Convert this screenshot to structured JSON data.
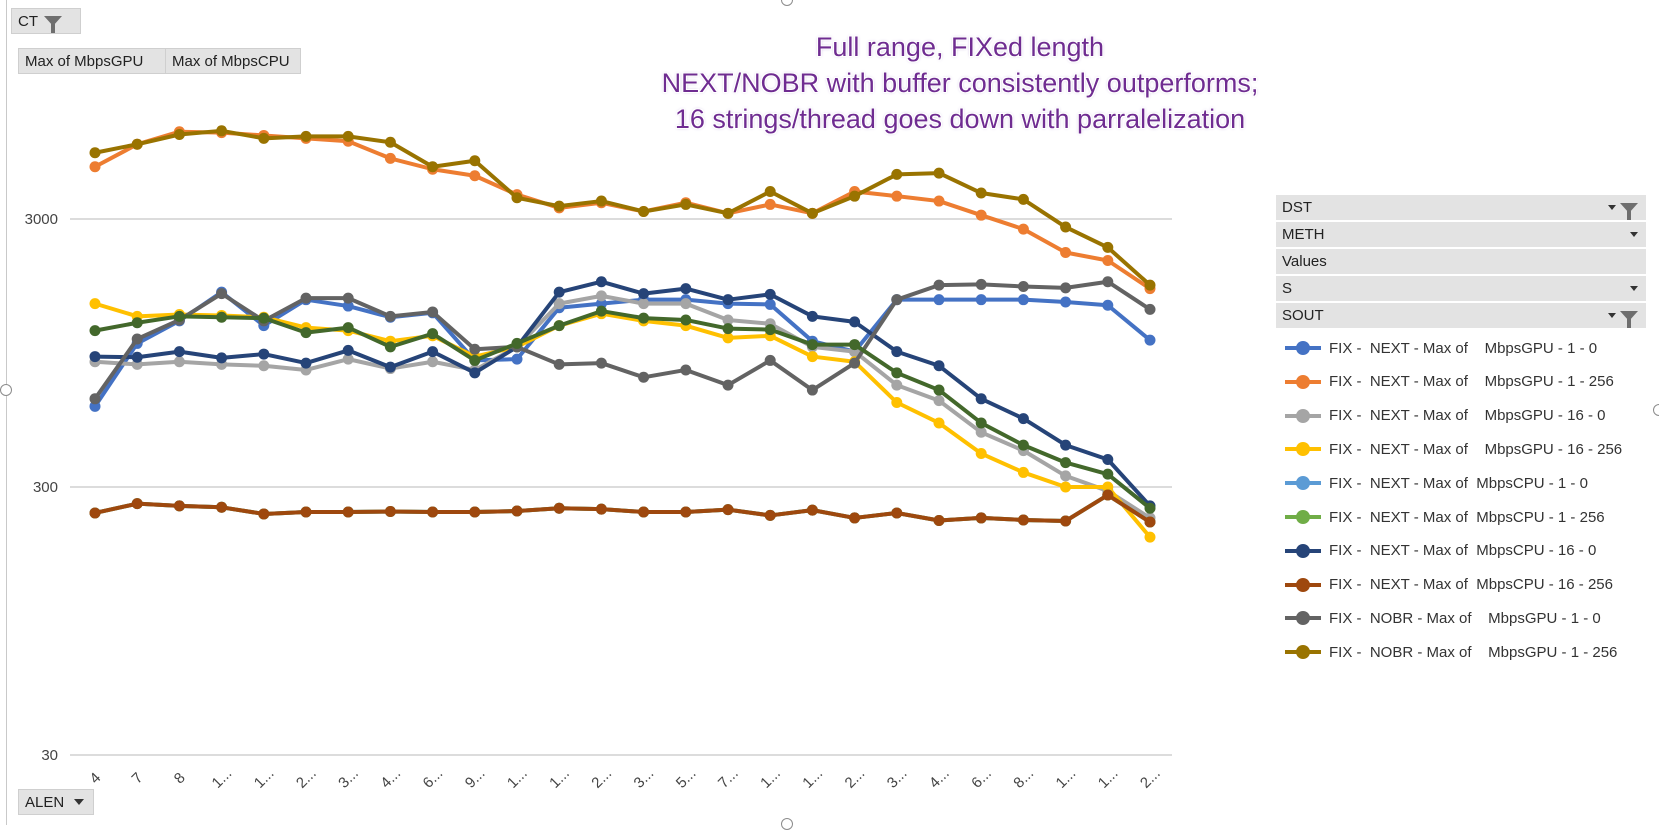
{
  "pivot": {
    "ct_button": "CT",
    "value_buttons": [
      "Max of    MbpsGPU",
      "Max of  MbpsCPU"
    ],
    "alen_button": "ALEN"
  },
  "field_list": {
    "rows": [
      {
        "label": "DST",
        "icon": "filter-icon"
      },
      {
        "label": "METH",
        "icon": "dropdown-icon"
      },
      {
        "label": "Values",
        "icon": ""
      },
      {
        "label": "S",
        "icon": "dropdown-icon"
      },
      {
        "label": "SOUT",
        "icon": "filter-icon"
      }
    ]
  },
  "chart_data": {
    "type": "line",
    "title_lines": [
      "Full range, FIXed length",
      "NEXT/NOBR with buffer consistently outperforms;",
      "16 strings/thread goes down with parralelization"
    ],
    "y_scale": "log",
    "ylim": [
      30,
      5000
    ],
    "y_ticks": [
      30,
      300,
      3000
    ],
    "y_tick_labels": [
      "30",
      "300",
      "3000"
    ],
    "grid": true,
    "legend_position": "right",
    "categories": [
      "4",
      "7",
      "8",
      "1...",
      "1...",
      "2...",
      "3...",
      "4...",
      "6...",
      "9...",
      "1...",
      "1...",
      "2...",
      "3...",
      "5...",
      "7...",
      "1...",
      "1...",
      "2...",
      "3...",
      "4...",
      "6...",
      "8...",
      "1...",
      "1...",
      "2..."
    ],
    "series": [
      {
        "name": "FIX -  NEXT - Max of    MbpsGPU - 1 - 0",
        "color": "#4472C4",
        "values": [
          600,
          1030,
          1250,
          1600,
          1200,
          1500,
          1420,
          1290,
          1340,
          890,
          900,
          1400,
          1450,
          1500,
          1500,
          1450,
          1440,
          1050,
          960,
          1500,
          1500,
          1500,
          1500,
          1470,
          1430,
          1060
        ]
      },
      {
        "name": "FIX -  NEXT - Max of    MbpsGPU - 1 - 256",
        "color": "#ED7D31",
        "values": [
          4700,
          5700,
          6350,
          6300,
          6150,
          6000,
          5850,
          5050,
          4600,
          4350,
          3700,
          3300,
          3450,
          3200,
          3450,
          3150,
          3400,
          3150,
          3800,
          3650,
          3500,
          3100,
          2750,
          2250,
          2100,
          1650
        ]
      },
      {
        "name": "FIX -  NEXT - Max of    MbpsGPU - 16 - 0",
        "color": "#A5A5A5",
        "values": [
          880,
          860,
          880,
          860,
          850,
          820,
          900,
          830,
          880,
          820,
          1000,
          1450,
          1550,
          1450,
          1450,
          1260,
          1220,
          1000,
          960,
          720,
          630,
          480,
          410,
          330,
          290,
          230
        ]
      },
      {
        "name": "FIX -  NEXT - Max of    MbpsGPU - 16 - 256",
        "color": "#FFC000",
        "values": [
          1450,
          1300,
          1320,
          1310,
          1290,
          1180,
          1150,
          1050,
          1100,
          920,
          1000,
          1200,
          1330,
          1250,
          1200,
          1080,
          1100,
          920,
          880,
          620,
          520,
          400,
          340,
          300,
          300,
          195
        ]
      },
      {
        "name": "FIX -  NEXT - Max of  MbpsCPU - 1 - 0",
        "color": "#5B9BD5",
        "values": [
          240,
          260,
          255,
          252,
          238,
          242,
          242,
          243,
          242,
          242,
          244,
          250,
          248,
          242,
          242,
          247,
          235,
          246,
          230,
          240,
          225,
          230,
          226,
          224,
          280,
          222
        ]
      },
      {
        "name": "FIX -  NEXT - Max of  MbpsCPU - 1 - 256",
        "color": "#70AD47",
        "values": [
          240,
          260,
          255,
          252,
          238,
          242,
          242,
          243,
          242,
          242,
          244,
          250,
          248,
          242,
          242,
          247,
          235,
          246,
          230,
          240,
          225,
          230,
          226,
          224,
          280,
          222
        ]
      },
      {
        "name": "FIX -  NEXT - Max of  MbpsCPU - 16 - 0",
        "color": "#264478",
        "values": [
          920,
          915,
          960,
          910,
          940,
          870,
          970,
          840,
          960,
          800,
          1000,
          1600,
          1750,
          1580,
          1650,
          1500,
          1570,
          1300,
          1240,
          960,
          850,
          640,
          540,
          430,
          380,
          255
        ]
      },
      {
        "name": "FIX -  NEXT - Max of  MbpsCPU - 16 - 256",
        "color": "#9E480E",
        "values": [
          240,
          260,
          255,
          252,
          238,
          242,
          242,
          243,
          242,
          242,
          244,
          250,
          248,
          242,
          242,
          247,
          235,
          246,
          230,
          240,
          225,
          230,
          226,
          224,
          280,
          222
        ]
      },
      {
        "name": "FIX -  NOBR - Max of    MbpsGPU - 1 - 0",
        "color": "#636363",
        "values": [
          640,
          1070,
          1260,
          1580,
          1250,
          1520,
          1520,
          1300,
          1350,
          980,
          1000,
          860,
          870,
          770,
          820,
          720,
          890,
          690,
          870,
          1500,
          1700,
          1710,
          1680,
          1660,
          1750,
          1380
        ]
      },
      {
        "name": "FIX -  NOBR - Max of    MbpsGPU - 1 - 256",
        "color": "#997300",
        "values": [
          5300,
          5700,
          6200,
          6400,
          6000,
          6100,
          6100,
          5800,
          4700,
          4950,
          3600,
          3350,
          3500,
          3200,
          3400,
          3150,
          3800,
          3150,
          3650,
          4400,
          4450,
          3750,
          3550,
          2800,
          2350,
          1700
        ]
      },
      {
        "name": "",
        "color": "#43682B",
        "values": [
          1150,
          1230,
          1300,
          1290,
          1280,
          1130,
          1180,
          1000,
          1120,
          890,
          1030,
          1200,
          1360,
          1280,
          1260,
          1170,
          1160,
          1020,
          1020,
          800,
          690,
          520,
          430,
          370,
          335,
          250
        ]
      }
    ]
  }
}
